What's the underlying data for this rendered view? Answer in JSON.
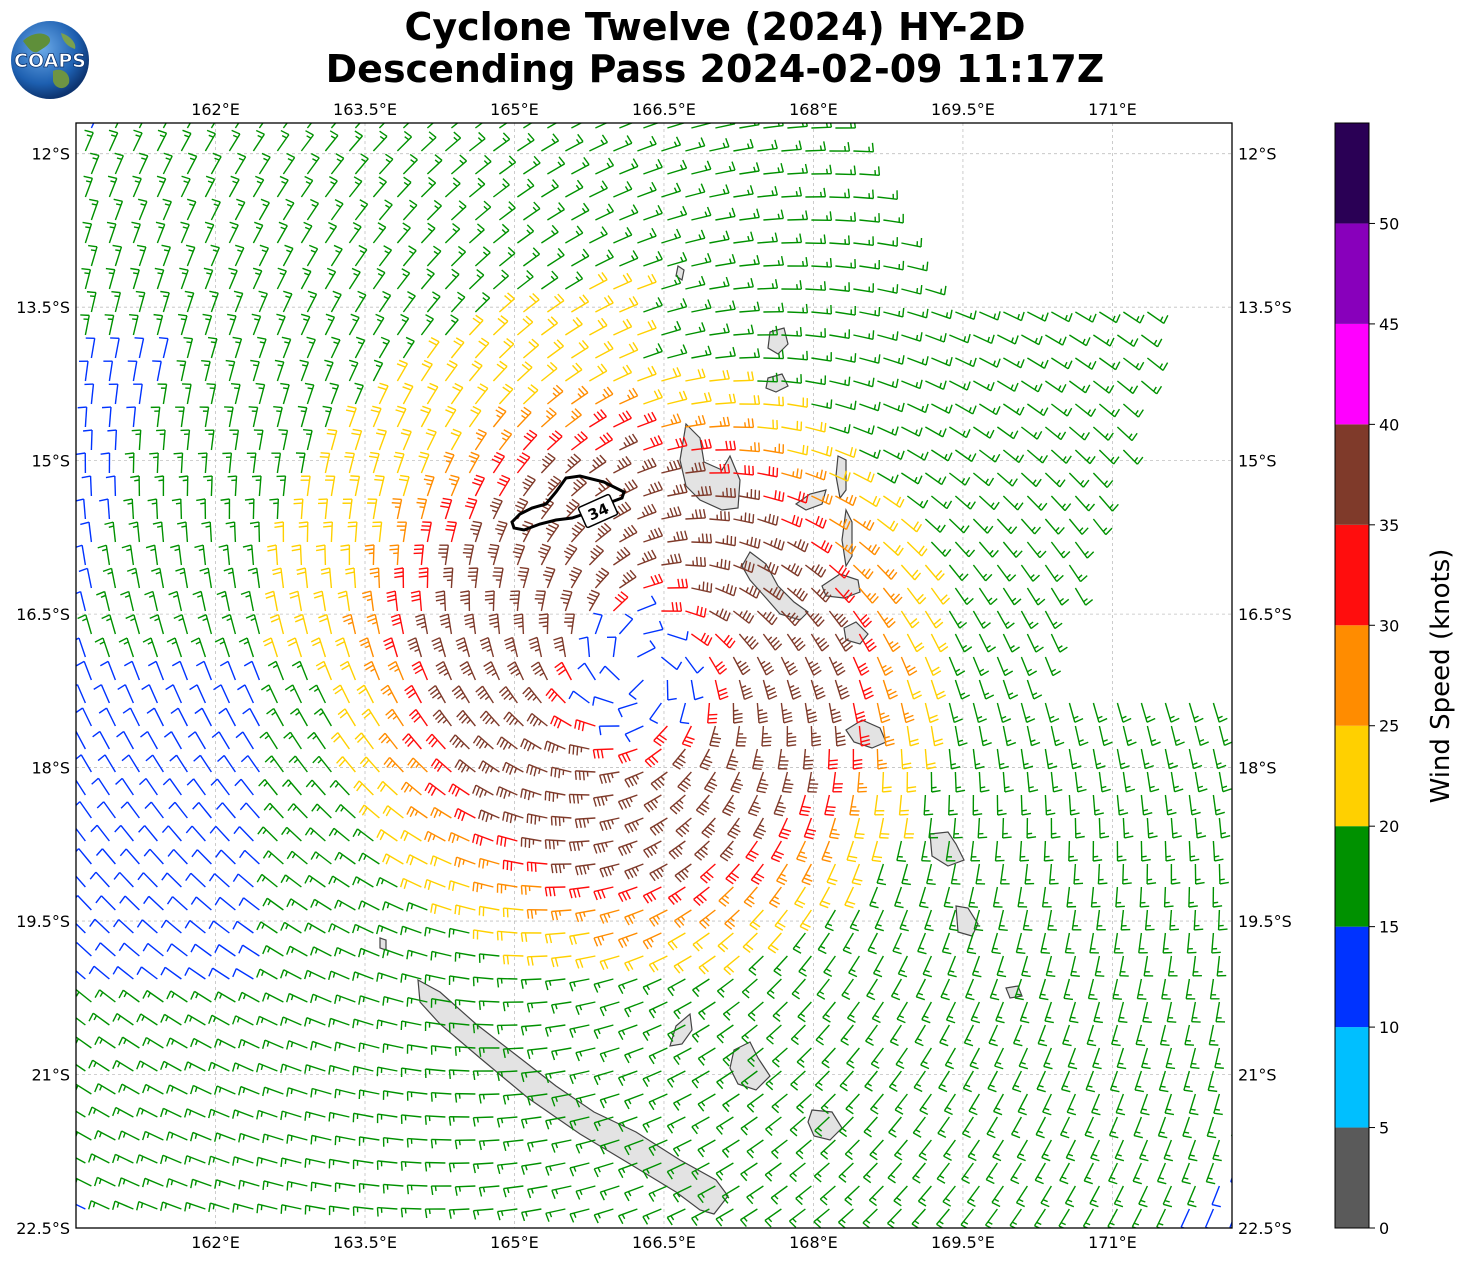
{
  "title": {
    "line1": "Cyclone Twelve (2024) HY-2D",
    "line2": "Descending Pass 2024-02-09 11:17Z"
  },
  "logo": {
    "text": "COAPS",
    "icon": "globe-logo-icon"
  },
  "map": {
    "lon_range": [
      160.6,
      172.2
    ],
    "lat_range": [
      -22.5,
      -11.7
    ],
    "lon_ticks": [
      {
        "value": 162.0,
        "label": "162°E"
      },
      {
        "value": 163.5,
        "label": "163.5°E"
      },
      {
        "value": 165.0,
        "label": "165°E"
      },
      {
        "value": 166.5,
        "label": "166.5°E"
      },
      {
        "value": 168.0,
        "label": "168°E"
      },
      {
        "value": 169.5,
        "label": "169.5°E"
      },
      {
        "value": 171.0,
        "label": "171°E"
      }
    ],
    "lat_ticks": [
      {
        "value": -12.0,
        "label": "12°S"
      },
      {
        "value": -13.5,
        "label": "13.5°S"
      },
      {
        "value": -15.0,
        "label": "15°S"
      },
      {
        "value": -16.5,
        "label": "16.5°S"
      },
      {
        "value": -18.0,
        "label": "18°S"
      },
      {
        "value": -19.5,
        "label": "19.5°S"
      },
      {
        "value": -21.0,
        "label": "21°S"
      },
      {
        "value": -22.5,
        "label": "22.5°S"
      }
    ],
    "storm_center": {
      "lon": 166.25,
      "lat": -17.05
    },
    "contour_label": "34",
    "wind_units": "knots"
  },
  "colorbar": {
    "title": "Wind Speed (knots)",
    "bins": [
      {
        "from": 0,
        "to": 5,
        "color": "#5a5a5a"
      },
      {
        "from": 5,
        "to": 10,
        "color": "#00bfff"
      },
      {
        "from": 10,
        "to": 15,
        "color": "#0033ff"
      },
      {
        "from": 15,
        "to": 20,
        "color": "#009100"
      },
      {
        "from": 20,
        "to": 25,
        "color": "#ffd000"
      },
      {
        "from": 25,
        "to": 30,
        "color": "#ff8c00"
      },
      {
        "from": 30,
        "to": 35,
        "color": "#ff0d0d"
      },
      {
        "from": 35,
        "to": 40,
        "color": "#7f3a2a"
      },
      {
        "from": 40,
        "to": 45,
        "color": "#ff00ff"
      },
      {
        "from": 45,
        "to": 50,
        "color": "#8800bb"
      },
      {
        "from": 50,
        "to": 55,
        "color": "#2a0055"
      }
    ],
    "tick_labels": [
      "0",
      "5",
      "10",
      "15",
      "20",
      "25",
      "30",
      "35",
      "40",
      "45",
      "50"
    ]
  }
}
